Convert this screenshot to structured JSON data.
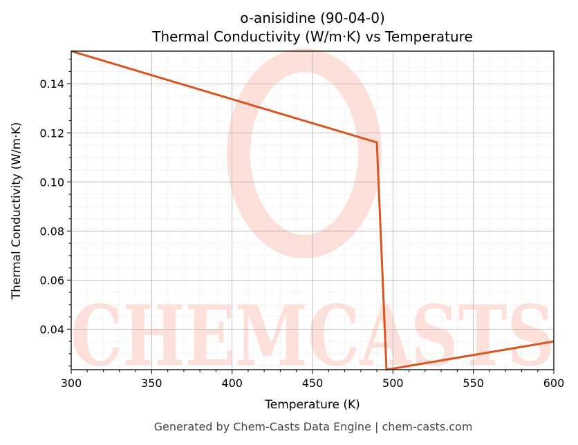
{
  "chart": {
    "title_line1": "o-anisidine (90-04-0)",
    "title_line2": "Thermal Conductivity (W/m·K) vs Temperature",
    "xlabel": "Temperature (K)",
    "ylabel": "Thermal Conductivity (W/m·K)",
    "footer": "Generated by Chem-Casts Data Engine | chem-casts.com",
    "watermark": "CHEMCASTS",
    "line_color": "#d9541e",
    "watermark_color": "#fde0da"
  },
  "chart_data": {
    "type": "line",
    "title": "o-anisidine (90-04-0) Thermal Conductivity (W/m·K) vs Temperature",
    "xlabel": "Temperature (K)",
    "ylabel": "Thermal Conductivity (W/m·K)",
    "xlim": [
      300,
      600
    ],
    "ylim": [
      0.0235,
      0.1533
    ],
    "xticks": [
      300,
      350,
      400,
      450,
      500,
      550,
      600
    ],
    "yticks": [
      0.04,
      0.06,
      0.08,
      0.1,
      0.12,
      0.14
    ],
    "grid": true,
    "legend": null,
    "series": [
      {
        "name": "Thermal Conductivity",
        "x": [
          300,
          490,
          496,
          600
        ],
        "y": [
          0.1533,
          0.1161,
          0.0235,
          0.035
        ]
      }
    ]
  }
}
